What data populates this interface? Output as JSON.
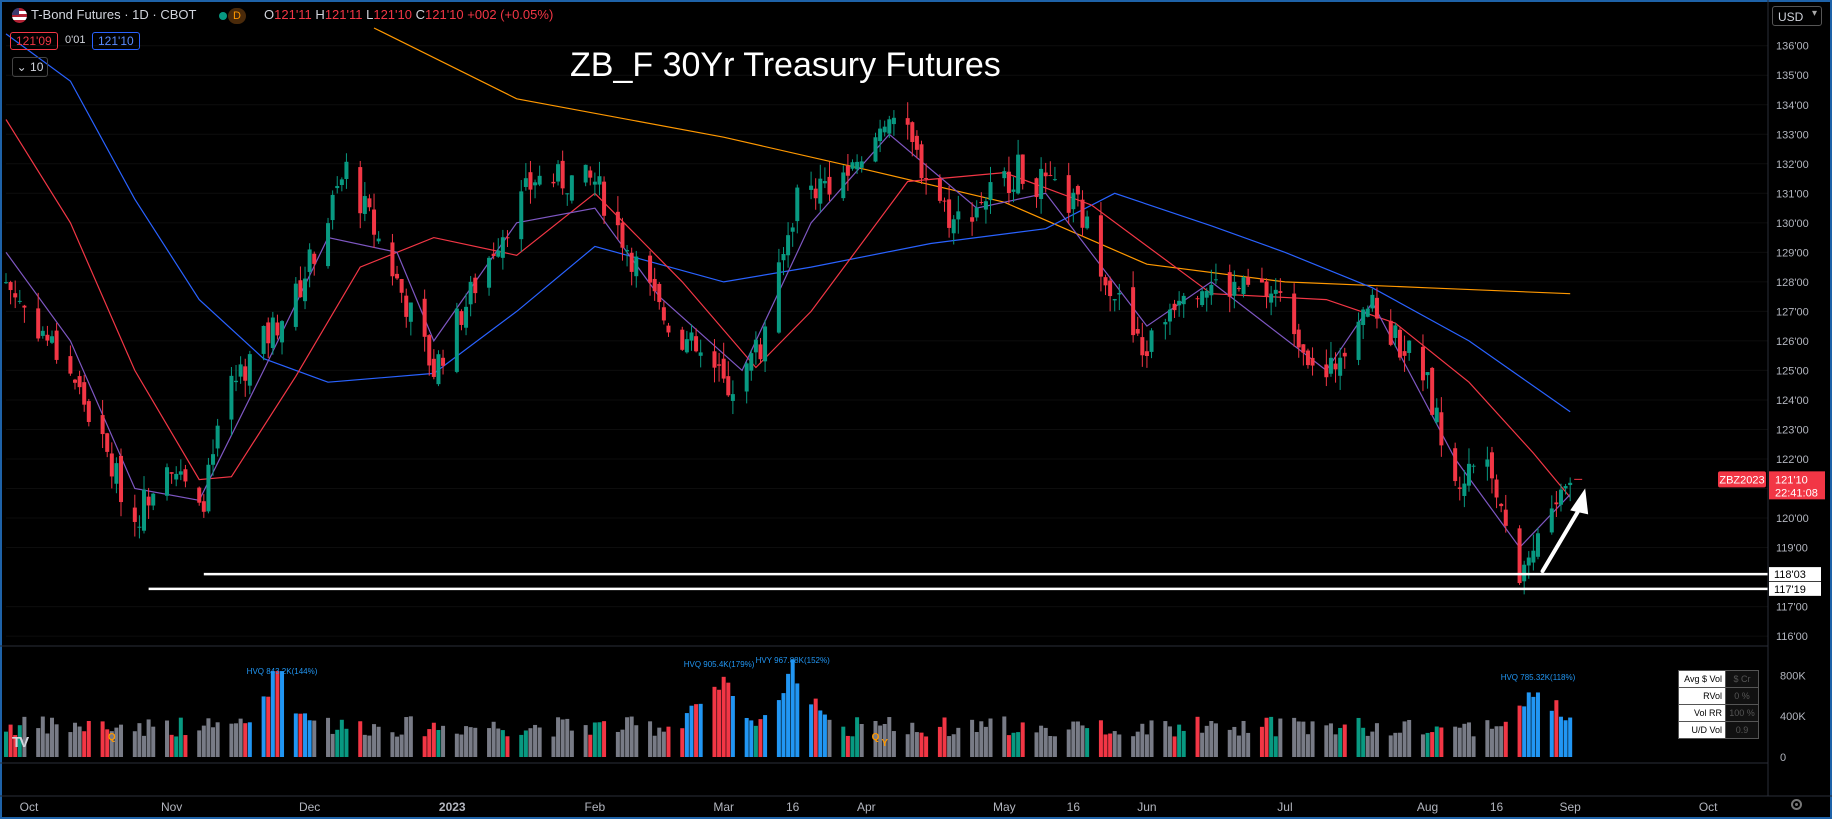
{
  "header": {
    "symbol_title": "T-Bond Futures · 1D · CBOT",
    "timeframe_badge": "D",
    "ohlc": [
      {
        "key": "O",
        "value": "121'11"
      },
      {
        "key": "H",
        "value": "121'11"
      },
      {
        "key": "L",
        "value": "121'10"
      },
      {
        "key": "C",
        "value": "121'10"
      }
    ],
    "change": "+002 (+0.05%)",
    "bid": "121'09",
    "spread": "0'01",
    "ask": "121'10",
    "indicator_toggle": "10",
    "currency": "USD",
    "colors": {
      "up": "#089981",
      "down": "#f23645",
      "accent": "#2962ff"
    }
  },
  "chart_data": {
    "type": "candlestick",
    "title": "ZB_F 30Yr Treasury Futures",
    "ylim": [
      115.8,
      136.6
    ],
    "y_ticks": [
      "136'00",
      "135'00",
      "134'00",
      "133'00",
      "132'00",
      "131'00",
      "130'00",
      "129'00",
      "128'00",
      "127'00",
      "126'00",
      "125'00",
      "124'00",
      "123'00",
      "122'00",
      "121'00",
      "120'00",
      "119'00",
      "117'00",
      "116'00"
    ],
    "x_ticks": [
      "Oct",
      "Nov",
      "Dec",
      "2023",
      "Feb",
      "Mar",
      "16",
      "Apr",
      "May",
      "16",
      "Jun",
      "Jul",
      "Aug",
      "16",
      "Sep",
      "Oct"
    ],
    "x_range": [
      "2022-09-26",
      "2023-10-14"
    ],
    "price_series": [
      {
        "date": "2022-09-26",
        "close": 128.0
      },
      {
        "date": "2022-10-10",
        "close": 125.0
      },
      {
        "date": "2022-10-24",
        "close": 119.9
      },
      {
        "date": "2022-10-31",
        "close": 122.2
      },
      {
        "date": "2022-11-07",
        "close": 120.1
      },
      {
        "date": "2022-11-14",
        "close": 124.5
      },
      {
        "date": "2022-11-28",
        "close": 127.5
      },
      {
        "date": "2022-12-09",
        "close": 131.8
      },
      {
        "date": "2022-12-19",
        "close": 128.4
      },
      {
        "date": "2022-12-28",
        "close": 125.0
      },
      {
        "date": "2023-01-11",
        "close": 129.5
      },
      {
        "date": "2023-01-19",
        "close": 131.5
      },
      {
        "date": "2023-02-01",
        "close": 131.4
      },
      {
        "date": "2023-02-15",
        "close": 127.0
      },
      {
        "date": "2023-03-02",
        "close": 124.4
      },
      {
        "date": "2023-03-10",
        "close": 126.0
      },
      {
        "date": "2023-03-17",
        "close": 131.0
      },
      {
        "date": "2023-03-31",
        "close": 131.8
      },
      {
        "date": "2023-04-06",
        "close": 133.9
      },
      {
        "date": "2023-04-20",
        "close": 130.0
      },
      {
        "date": "2023-05-04",
        "close": 131.8
      },
      {
        "date": "2023-05-17",
        "close": 130.5
      },
      {
        "date": "2023-05-31",
        "close": 125.5
      },
      {
        "date": "2023-06-09",
        "close": 128.0
      },
      {
        "date": "2023-06-29",
        "close": 127.6
      },
      {
        "date": "2023-07-10",
        "close": 124.6
      },
      {
        "date": "2023-07-18",
        "close": 127.4
      },
      {
        "date": "2023-07-31",
        "close": 125.0
      },
      {
        "date": "2023-08-07",
        "close": 121.0
      },
      {
        "date": "2023-08-14",
        "close": 122.5
      },
      {
        "date": "2023-08-21",
        "close": 118.1
      },
      {
        "date": "2023-08-28",
        "close": 120.3
      },
      {
        "date": "2023-09-01",
        "close": 121.31
      }
    ],
    "moving_averages": [
      {
        "color": "#ff9800",
        "points": [
          {
            "date": "2022-12-15",
            "value": 136.6
          },
          {
            "date": "2023-01-15",
            "value": 134.2
          },
          {
            "date": "2023-03-01",
            "value": 132.9
          },
          {
            "date": "2023-04-01",
            "value": 131.8
          },
          {
            "date": "2023-05-01",
            "value": 130.7
          },
          {
            "date": "2023-06-01",
            "value": 128.6
          },
          {
            "date": "2023-07-01",
            "value": 128.0
          },
          {
            "date": "2023-08-01",
            "value": 127.8
          },
          {
            "date": "2023-09-01",
            "value": 127.6
          }
        ]
      },
      {
        "color": "#2962ff",
        "points": [
          {
            "date": "2022-09-26",
            "value": 136.4
          },
          {
            "date": "2022-10-10",
            "value": 134.8
          },
          {
            "date": "2022-10-24",
            "value": 130.8
          },
          {
            "date": "2022-11-07",
            "value": 127.4
          },
          {
            "date": "2022-11-21",
            "value": 125.4
          },
          {
            "date": "2022-12-05",
            "value": 124.6
          },
          {
            "date": "2022-12-28",
            "value": 124.9
          },
          {
            "date": "2023-01-15",
            "value": 127.0
          },
          {
            "date": "2023-02-01",
            "value": 129.2
          },
          {
            "date": "2023-03-01",
            "value": 128.0
          },
          {
            "date": "2023-03-20",
            "value": 128.5
          },
          {
            "date": "2023-04-15",
            "value": 129.3
          },
          {
            "date": "2023-05-10",
            "value": 129.8
          },
          {
            "date": "2023-05-25",
            "value": 131.0
          },
          {
            "date": "2023-06-15",
            "value": 129.9
          },
          {
            "date": "2023-07-01",
            "value": 129.0
          },
          {
            "date": "2023-07-20",
            "value": 127.8
          },
          {
            "date": "2023-08-10",
            "value": 126.0
          },
          {
            "date": "2023-09-01",
            "value": 123.6
          }
        ]
      },
      {
        "color": "#f23645",
        "points": [
          {
            "date": "2022-09-26",
            "value": 133.5
          },
          {
            "date": "2022-10-10",
            "value": 130.0
          },
          {
            "date": "2022-10-24",
            "value": 125.0
          },
          {
            "date": "2022-11-07",
            "value": 121.3
          },
          {
            "date": "2022-11-14",
            "value": 121.4
          },
          {
            "date": "2022-11-28",
            "value": 124.8
          },
          {
            "date": "2022-12-12",
            "value": 128.5
          },
          {
            "date": "2022-12-28",
            "value": 129.5
          },
          {
            "date": "2023-01-15",
            "value": 128.9
          },
          {
            "date": "2023-02-01",
            "value": 131.0
          },
          {
            "date": "2023-02-20",
            "value": 128.0
          },
          {
            "date": "2023-03-08",
            "value": 125.1
          },
          {
            "date": "2023-03-20",
            "value": 127.0
          },
          {
            "date": "2023-04-10",
            "value": 131.4
          },
          {
            "date": "2023-05-01",
            "value": 131.7
          },
          {
            "date": "2023-05-20",
            "value": 130.6
          },
          {
            "date": "2023-06-15",
            "value": 127.6
          },
          {
            "date": "2023-07-10",
            "value": 127.4
          },
          {
            "date": "2023-07-25",
            "value": 126.6
          },
          {
            "date": "2023-08-10",
            "value": 124.6
          },
          {
            "date": "2023-08-24",
            "value": 122.2
          },
          {
            "date": "2023-09-01",
            "value": 120.7
          }
        ]
      },
      {
        "color": "#7e57c2",
        "points": [
          {
            "date": "2022-09-26",
            "value": 129.0
          },
          {
            "date": "2022-10-10",
            "value": 126.0
          },
          {
            "date": "2022-10-24",
            "value": 121.0
          },
          {
            "date": "2022-11-07",
            "value": 120.6
          },
          {
            "date": "2022-11-21",
            "value": 125.0
          },
          {
            "date": "2022-12-05",
            "value": 129.5
          },
          {
            "date": "2022-12-20",
            "value": 129.0
          },
          {
            "date": "2022-12-28",
            "value": 126.0
          },
          {
            "date": "2023-01-15",
            "value": 130.0
          },
          {
            "date": "2023-02-01",
            "value": 130.5
          },
          {
            "date": "2023-02-15",
            "value": 127.5
          },
          {
            "date": "2023-03-05",
            "value": 125.0
          },
          {
            "date": "2023-03-20",
            "value": 130.0
          },
          {
            "date": "2023-04-06",
            "value": 133.0
          },
          {
            "date": "2023-04-25",
            "value": 130.5
          },
          {
            "date": "2023-05-10",
            "value": 131.0
          },
          {
            "date": "2023-06-01",
            "value": 126.5
          },
          {
            "date": "2023-06-15",
            "value": 128.0
          },
          {
            "date": "2023-07-10",
            "value": 125.0
          },
          {
            "date": "2023-07-20",
            "value": 127.3
          },
          {
            "date": "2023-08-07",
            "value": 122.0
          },
          {
            "date": "2023-08-21",
            "value": 119.0
          },
          {
            "date": "2023-09-01",
            "value": 120.8
          }
        ]
      }
    ],
    "support_lines": [
      {
        "label": "118'03",
        "value": 118.1,
        "from": "2022-11-08"
      },
      {
        "label": "117'19",
        "value": 117.6,
        "from": "2022-10-27"
      }
    ],
    "last_price": {
      "symbol": "ZBZ2023",
      "value_label": "121'10",
      "value": 121.31,
      "countdown": "22:41:08"
    },
    "arrow": {
      "from": {
        "date": "2023-08-26",
        "value": 118.2
      },
      "to": {
        "date": "2023-09-01",
        "value": 120.8
      }
    },
    "volume": {
      "ylim": [
        0,
        1050000
      ],
      "y_ticks": [
        "800K",
        "400K",
        "0"
      ],
      "tick_values": [
        800000,
        400000,
        0
      ],
      "annotations": [
        {
          "text": "HVQ 843.2K(144%)",
          "date": "2022-11-25"
        },
        {
          "text": "HVQ 905.4K(179%)",
          "date": "2023-02-28"
        },
        {
          "text": "HVY 967.88K(152%)",
          "date": "2023-03-16"
        },
        {
          "text": "HVQ 785.32K(118%)",
          "date": "2023-08-25"
        }
      ],
      "markers": [
        {
          "text": "Q",
          "date": "2022-10-19"
        },
        {
          "text": "Q",
          "date": "2023-04-03"
        },
        {
          "text": "Y",
          "date": "2023-04-05"
        }
      ],
      "high_volume_markers": [
        {
          "date": "2022-11-24",
          "value": 843200
        },
        {
          "date": "2023-02-28",
          "value": 905400
        },
        {
          "date": "2023-03-16",
          "value": 967880
        },
        {
          "date": "2023-08-25",
          "value": 785320
        }
      ],
      "stats_table": [
        {
          "label": "Avg $ Vol",
          "value": "$ Cr"
        },
        {
          "label": "RVol",
          "value": "0 %"
        },
        {
          "label": "Vol RR",
          "value": "100 %"
        },
        {
          "label": "U/D Vol",
          "value": "0.9"
        }
      ]
    }
  }
}
